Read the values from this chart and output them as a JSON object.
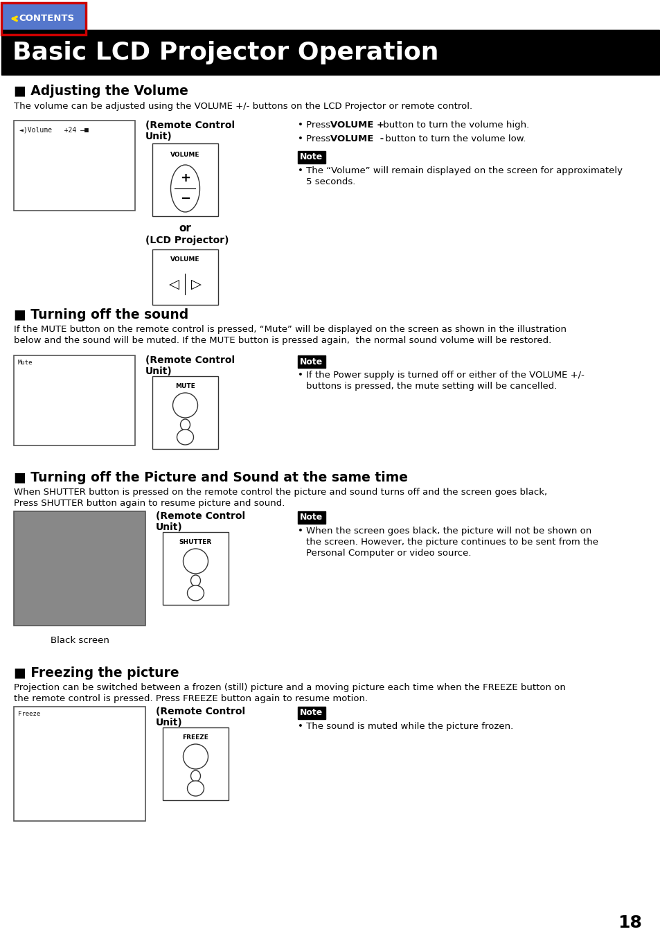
{
  "title": "Basic LCD Projector Operation",
  "title_bg": "#000000",
  "title_color": "#ffffff",
  "bg_color": "#ffffff",
  "page_number": "18",
  "sections": [
    {
      "heading": "■ Adjusting the Volume",
      "body": "The volume can be adjusted using the VOLUME +/- buttons on the LCD Projector or remote control.",
      "remote_label1": "(Remote Control",
      "remote_label2": "Unit)",
      "or_label": "or",
      "lcd_label": "(LCD Projector)",
      "vol_btn_label": "VOLUME",
      "bullet1_pre": "• Press ",
      "bullet1_bold": "VOLUME +",
      "bullet1_post": " button to turn the volume high.",
      "bullet2_pre": "• Press ",
      "bullet2_bold": "VOLUME  -",
      "bullet2_post": " button to turn the volume low.",
      "note_text": "• The “Volume” will remain displayed on the screen for approximately\n  5 seconds.",
      "screen_text": "Volume  +24"
    },
    {
      "heading": "■ Turning off the sound",
      "body_line1": "If the MUTE button on the remote control is pressed, “Mute” will be displayed on the screen as shown in the illustration",
      "body_line2": "below and the sound will be muted. If the MUTE button is pressed again,  the normal sound volume will be restored.",
      "remote_label1": "(Remote Control",
      "remote_label2": "Unit)",
      "btn_label": "MUTE",
      "note_text": "• If the Power supply is turned off or either of the VOLUME +/-\n  buttons is pressed, the mute setting will be cancelled.",
      "screen_text": "Mute"
    },
    {
      "heading": "■ Turning off the Picture and Sound at the same time",
      "body_line1": "When SHUTTER button is pressed on the remote control the picture and sound turns off and the screen goes black,",
      "body_line2": "Press SHUTTER button again to resume picture and sound.",
      "remote_label1": "(Remote Control",
      "remote_label2": "Unit)",
      "btn_label": "SHUTTER",
      "screen_caption": "Black screen",
      "screen_bg": "#888888",
      "note_text": "• When the screen goes black, the picture will not be shown on\n  the screen. However, the picture continues to be sent from the\n  Personal Computer or video source."
    },
    {
      "heading": "■ Freezing the picture",
      "body_line1": "Projection can be switched between a frozen (still) picture and a moving picture each time when the FREEZE button on",
      "body_line2": "the remote control is pressed. Press FREEZE button again to resume motion.",
      "remote_label1": "(Remote Control",
      "remote_label2": "Unit)",
      "btn_label": "FREEZE",
      "note_text": "• The sound is muted while the picture frozen.",
      "screen_text": "Freeze"
    }
  ]
}
